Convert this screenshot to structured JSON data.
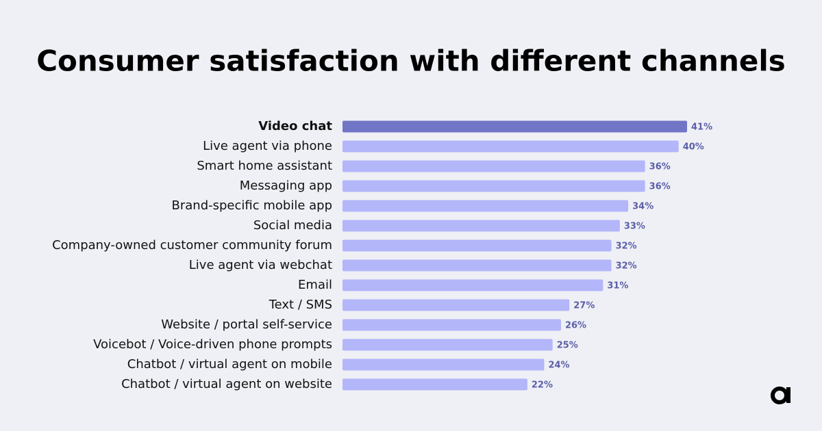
{
  "chart_data": {
    "type": "hbar",
    "title": "Consumer satisfaction with different channels",
    "categories": [
      "Video chat",
      "Live agent via phone",
      "Smart home assistant",
      "Messaging app",
      "Brand-specific mobile app",
      "Social media",
      "Company-owned customer community forum",
      "Live agent via webchat",
      "Email",
      "Text / SMS",
      "Website / portal self-service",
      "Voicebot / Voice-driven phone prompts",
      "Chatbot / virtual agent on mobile",
      "Chatbot / virtual agent on website"
    ],
    "values": [
      41,
      40,
      36,
      36,
      34,
      33,
      32,
      32,
      31,
      27,
      26,
      25,
      24,
      22
    ],
    "value_labels": [
      "41%",
      "40%",
      "36%",
      "36%",
      "34%",
      "33%",
      "32%",
      "32%",
      "31%",
      "27%",
      "26%",
      "25%",
      "24%",
      "22%"
    ],
    "color": "#b3b6f9",
    "highlight_color": "#7175c6",
    "highlight_index": 0
  }
}
